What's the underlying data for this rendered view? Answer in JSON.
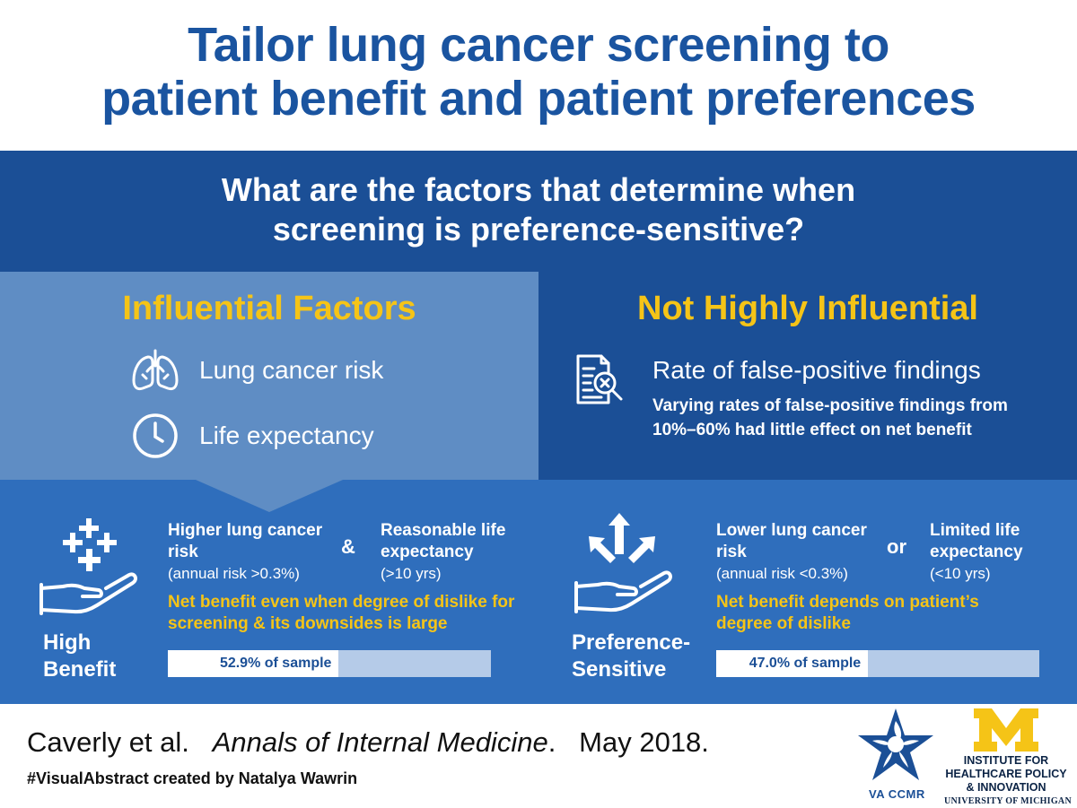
{
  "title": {
    "line1": "Tailor lung cancer screening to",
    "line2": "patient benefit and patient preferences"
  },
  "question": {
    "line1": "What are the factors that determine when",
    "line2": "screening is preference-sensitive?"
  },
  "influential": {
    "heading": "Influential Factors",
    "items": [
      {
        "icon": "lungs-icon",
        "label": "Lung cancer risk"
      },
      {
        "icon": "clock-icon",
        "label": "Life expectancy"
      }
    ]
  },
  "not_influential": {
    "heading": "Not Highly Influential",
    "item": {
      "icon": "document-search-x-icon",
      "label": "Rate of false-positive findings"
    },
    "note_line1": "Varying rates of false-positive findings from",
    "note_line2": "10%–60% had little effect on net benefit"
  },
  "high_benefit": {
    "icon": "hand-with-plus-signs-icon",
    "category_line1": "High",
    "category_line2": "Benefit",
    "criterion1_line1": "Higher lung cancer",
    "criterion1_line2": "risk",
    "criterion1_sub": "(annual risk >0.3%)",
    "conjunction": "&",
    "criterion2_line1": "Reasonable life",
    "criterion2_line2": "expectancy",
    "criterion2_sub": "(>10 yrs)",
    "result_line1": "Net benefit even when degree of dislike for",
    "result_line2": "screening & its downsides is large",
    "sample_label": "52.9% of sample",
    "sample_fraction": 0.529
  },
  "preference_sensitive": {
    "icon": "hand-with-arrows-icon",
    "category_line1": "Preference-",
    "category_line2": "Sensitive",
    "criterion1_line1": "Lower lung cancer",
    "criterion1_line2": "risk",
    "criterion1_sub": "(annual risk <0.3%)",
    "conjunction": "or",
    "criterion2_line1": "Limited life",
    "criterion2_line2": "expectancy",
    "criterion2_sub": "(<10 yrs)",
    "result_line1": "Net benefit depends on patient’s",
    "result_line2": "degree of dislike",
    "sample_label": "47.0% of sample",
    "sample_fraction": 0.47
  },
  "citation": {
    "authors": "Caverly et al.",
    "journal": "Annals of Internal Medicine",
    "date": "May 2018."
  },
  "credit": "#VisualAbstract created by Natalya Wawrin",
  "logos": {
    "va": "VA CCMR",
    "ihpi_line1": "INSTITUTE FOR",
    "ihpi_line2": "HEALTHCARE POLICY",
    "ihpi_line3": "& INNOVATION",
    "ihpi_line4": "UNIVERSITY OF MICHIGAN"
  },
  "colors": {
    "title_blue": "#1a54a0",
    "dark_blue": "#1b4f96",
    "mid_blue": "#2f6ebc",
    "light_blue": "#5f8dc4",
    "accent_yellow": "#f5c417",
    "bar_track": "#b5cbe8"
  }
}
